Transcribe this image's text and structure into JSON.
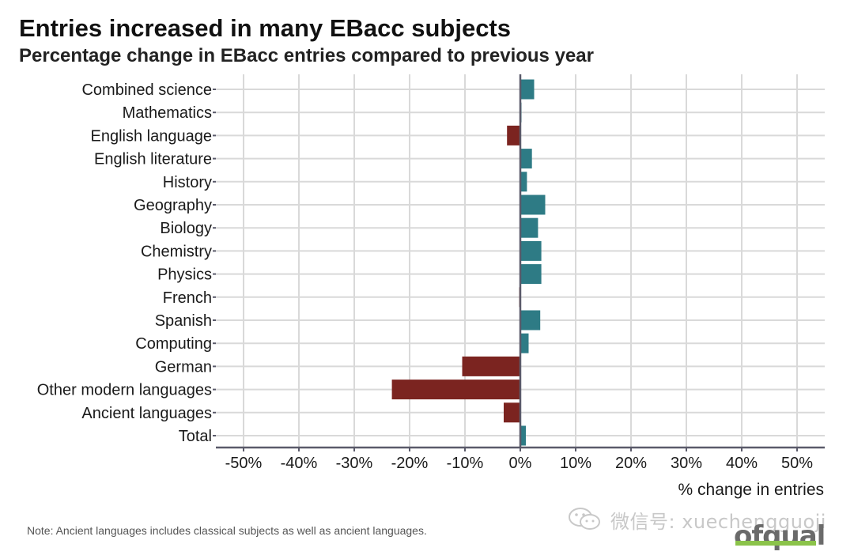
{
  "colors": {
    "increase": "#2e7b85",
    "decrease": "#7b2420",
    "grid": "#d9d9d9",
    "axis": "#5a5a6a"
  },
  "chart_data": {
    "type": "bar",
    "orientation": "horizontal",
    "title": "Entries increased in many EBacc subjects",
    "subtitle": "Percentage change in EBacc entries compared to previous year",
    "xlabel": "% change in entries",
    "ylabel": "",
    "xlim": [
      -50,
      50
    ],
    "xticks": [
      -50,
      -40,
      -30,
      -20,
      -10,
      0,
      10,
      20,
      30,
      40,
      50
    ],
    "xtick_labels": [
      "-50%",
      "-40%",
      "-30%",
      "-20%",
      "-10%",
      "0%",
      "10%",
      "20%",
      "30%",
      "40%",
      "50%"
    ],
    "grid": true,
    "categories": [
      "Combined science",
      "Mathematics",
      "English language",
      "English literature",
      "History",
      "Geography",
      "Biology",
      "Chemistry",
      "Physics",
      "French",
      "Spanish",
      "Computing",
      "German",
      "Other modern languages",
      "Ancient languages",
      "Total"
    ],
    "values": [
      2.5,
      0.2,
      -2.4,
      2.1,
      1.2,
      4.5,
      3.2,
      3.8,
      3.8,
      -0.2,
      3.6,
      1.5,
      -10.5,
      -23.2,
      -3.0,
      1.0
    ]
  },
  "note": "Note: Ancient languages includes classical subjects as well as ancient languages.",
  "watermark": "微信号: xuechengguoji",
  "logo": "ofqual",
  "icons": {
    "watermark": "wechat-icon"
  }
}
